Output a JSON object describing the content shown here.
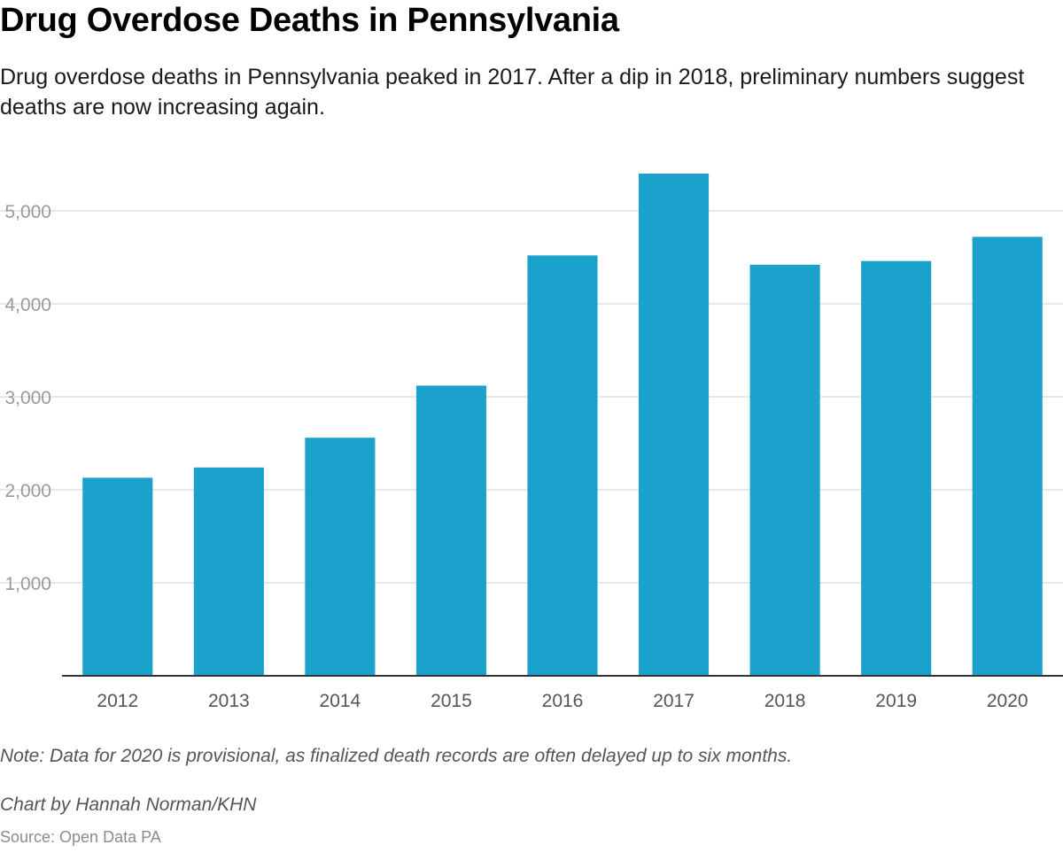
{
  "title": "Drug Overdose Deaths in Pennsylvania",
  "subtitle": "Drug overdose deaths in Pennsylvania peaked in 2017. After a dip in 2018, preliminary numbers suggest deaths are now increasing again.",
  "note": "Note: Data for 2020 is provisional, as finalized death records are often delayed up to six months.",
  "credit": "Chart by Hannah Norman/KHN",
  "source": "Source: Open Data PA",
  "colors": {
    "bar": "#1aa1cc",
    "gridline": "#e0e0e0",
    "axis": "#333333"
  },
  "chart_data": {
    "type": "bar",
    "title": "Drug Overdose Deaths in Pennsylvania",
    "xlabel": "",
    "ylabel": "",
    "categories": [
      "2012",
      "2013",
      "2014",
      "2015",
      "2016",
      "2017",
      "2018",
      "2019",
      "2020"
    ],
    "values": [
      2130,
      2240,
      2560,
      3120,
      4520,
      5400,
      4420,
      4460,
      4720
    ],
    "ylim": [
      0,
      5400
    ],
    "yticks": [
      1000,
      2000,
      3000,
      4000,
      5000
    ],
    "ytick_labels": [
      "1,000",
      "2,000",
      "3,000",
      "4,000",
      "5,000"
    ],
    "grid": true,
    "legend": "none"
  }
}
